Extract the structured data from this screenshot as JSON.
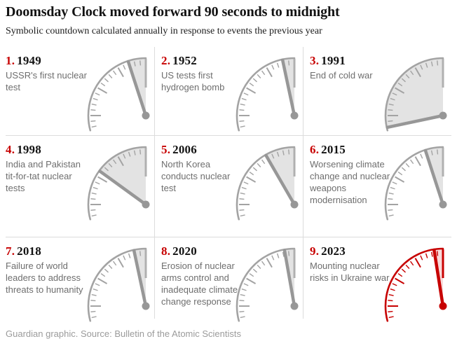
{
  "header": {
    "title": "Doomsday Clock moved forward 90 seconds to midnight",
    "subtitle": "Symbolic countdown calculated annually in response to events the previous year"
  },
  "footer": {
    "credit": "Guardian graphic. Source: Bulletin of the Atomic Scientists"
  },
  "colors": {
    "accent_red": "#c70000",
    "text_dark": "#121212",
    "text_gray": "#6e6e6e",
    "footer_gray": "#9b9b9b",
    "divider": "#dcdcdc",
    "clock_gray": "#a3a3a3",
    "clock_hand_gray": "#979797",
    "clock_stub_gray": "#b0b0b0",
    "wedge_gray": "#e3e3e3",
    "clock_red": "#c70000",
    "wedge_red": "#f8dada"
  },
  "chart_data": {
    "type": "gauge",
    "title": "Doomsday Clock moved forward 90 seconds to midnight",
    "subtitle": "Symbolic countdown calculated annually in response to events the previous year",
    "gauge_geometry": {
      "dial_span_minutes": 17.5,
      "degrees_per_minute": 6,
      "major_tick_every_minutes": 5,
      "minor_tick_every_minutes": 1,
      "midnight_position": "12 o'clock, hand approaches from the left"
    },
    "items": [
      {
        "index": "1.",
        "year": "1949",
        "label": "USSR's first nuclear test",
        "minutes_to_midnight": 3,
        "theme": "gray"
      },
      {
        "index": "2.",
        "year": "1952",
        "label": "US tests first hydrogen bomb",
        "minutes_to_midnight": 2,
        "theme": "gray"
      },
      {
        "index": "3.",
        "year": "1991",
        "label": "End of cold war",
        "minutes_to_midnight": 17,
        "theme": "gray"
      },
      {
        "index": "4.",
        "year": "1998",
        "label": "India and Pakistan tit-for-tat nuclear tests",
        "minutes_to_midnight": 9,
        "theme": "gray"
      },
      {
        "index": "5.",
        "year": "2006",
        "label": "North Korea conducts nuclear test",
        "minutes_to_midnight": 5,
        "theme": "gray"
      },
      {
        "index": "6.",
        "year": "2015",
        "label": "Worsening climate change and nuclear weapons modernisation",
        "minutes_to_midnight": 3,
        "theme": "gray"
      },
      {
        "index": "7.",
        "year": "2018",
        "label": "Failure of world leaders to address threats to humanity",
        "minutes_to_midnight": 2,
        "theme": "gray"
      },
      {
        "index": "8.",
        "year": "2020",
        "label": "Erosion of nuclear arms control and inadequate climate change response",
        "minutes_to_midnight": 1.67,
        "theme": "gray"
      },
      {
        "index": "9.",
        "year": "2023",
        "label": "Mounting nuclear risks in Ukraine war",
        "minutes_to_midnight": 1.5,
        "theme": "red"
      }
    ]
  }
}
